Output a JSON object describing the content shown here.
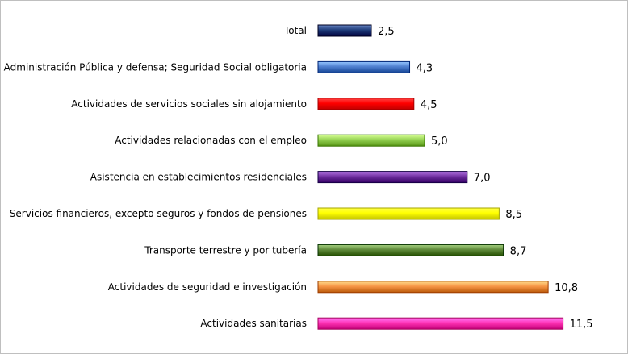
{
  "chart_data": {
    "type": "bar",
    "orientation": "horizontal",
    "categories": [
      "Total",
      "Administración Pública y defensa; Seguridad Social obligatoria",
      "Actividades de servicios sociales sin alojamiento",
      "Actividades relacionadas con el empleo",
      "Asistencia en establecimientos residenciales",
      "Servicios financieros, excepto seguros y fondos de pensiones",
      "Transporte terrestre y por tubería",
      "Actividades de seguridad e investigación",
      "Actividades sanitarias"
    ],
    "values": [
      2.5,
      4.3,
      4.5,
      5.0,
      7.0,
      8.5,
      8.7,
      10.8,
      11.5
    ],
    "value_labels": [
      "2,5",
      "4,3",
      "4,5",
      "5,0",
      "7,0",
      "8,5",
      "8,7",
      "10,8",
      "11,5"
    ],
    "colors": [
      "#1f3c7a",
      "#4f7fcf",
      "#ff0000",
      "#92d050",
      "#7030a0",
      "#ffff00",
      "#5f8a3a",
      "#f79646",
      "#ff33b4"
    ],
    "xlim": [
      0,
      11.5
    ],
    "grid": false,
    "legend": "none"
  }
}
